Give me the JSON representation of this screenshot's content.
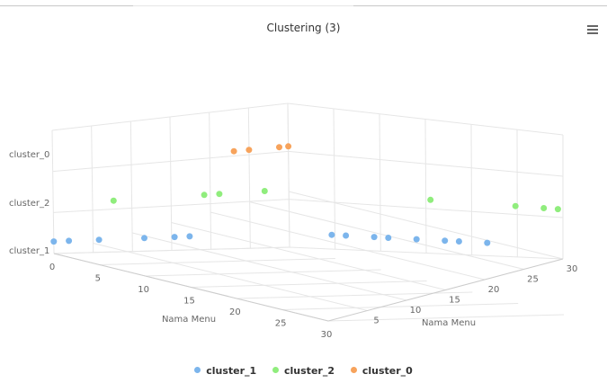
{
  "header": {
    "title": "Clustering (3)",
    "menu_icon": "hamburger-menu-icon"
  },
  "chart_data": {
    "type": "scatter",
    "title": "Clustering (3)",
    "xlabel": "Nama Menu",
    "zlabel": "Nama Menu",
    "x_ticks": [
      "0",
      "5",
      "10",
      "15",
      "20",
      "25",
      "30"
    ],
    "z_ticks": [
      "5",
      "10",
      "15",
      "20",
      "25",
      "30"
    ],
    "categories": [
      "cluster_1",
      "cluster_2",
      "cluster_0"
    ],
    "series": [
      {
        "name": "cluster_1",
        "color": "#7cb5ec",
        "y": "cluster_1",
        "points": [
          {
            "x": 0,
            "z": 0
          },
          {
            "x": 1,
            "z": 0
          },
          {
            "x": 3,
            "z": 0
          },
          {
            "x": 6,
            "z": 0
          },
          {
            "x": 8,
            "z": 0
          },
          {
            "x": 9,
            "z": 0
          },
          {
            "x": 30,
            "z": 3
          },
          {
            "x": 30,
            "z": 4
          },
          {
            "x": 30,
            "z": 6
          },
          {
            "x": 30,
            "z": 7
          },
          {
            "x": 30,
            "z": 9
          },
          {
            "x": 30,
            "z": 11
          },
          {
            "x": 30,
            "z": 12
          },
          {
            "x": 30,
            "z": 14
          }
        ]
      },
      {
        "name": "cluster_2",
        "color": "#90ed7d",
        "y": "cluster_2",
        "points": [
          {
            "x": 4,
            "z": 0
          },
          {
            "x": 10,
            "z": 0
          },
          {
            "x": 11,
            "z": 0
          },
          {
            "x": 14,
            "z": 0
          },
          {
            "x": 30,
            "z": 10
          },
          {
            "x": 30,
            "z": 16
          },
          {
            "x": 30,
            "z": 18
          },
          {
            "x": 30,
            "z": 19
          }
        ]
      },
      {
        "name": "cluster_0",
        "color": "#f7a35c",
        "y": "cluster_0",
        "points": [
          {
            "x": 12,
            "z": 0
          },
          {
            "x": 13,
            "z": 0
          },
          {
            "x": 15,
            "z": 0
          },
          {
            "x": 16,
            "z": 0
          }
        ]
      }
    ],
    "legend": [
      "cluster_1",
      "cluster_2",
      "cluster_0"
    ],
    "legend_position": "bottom-center",
    "grid": true
  }
}
